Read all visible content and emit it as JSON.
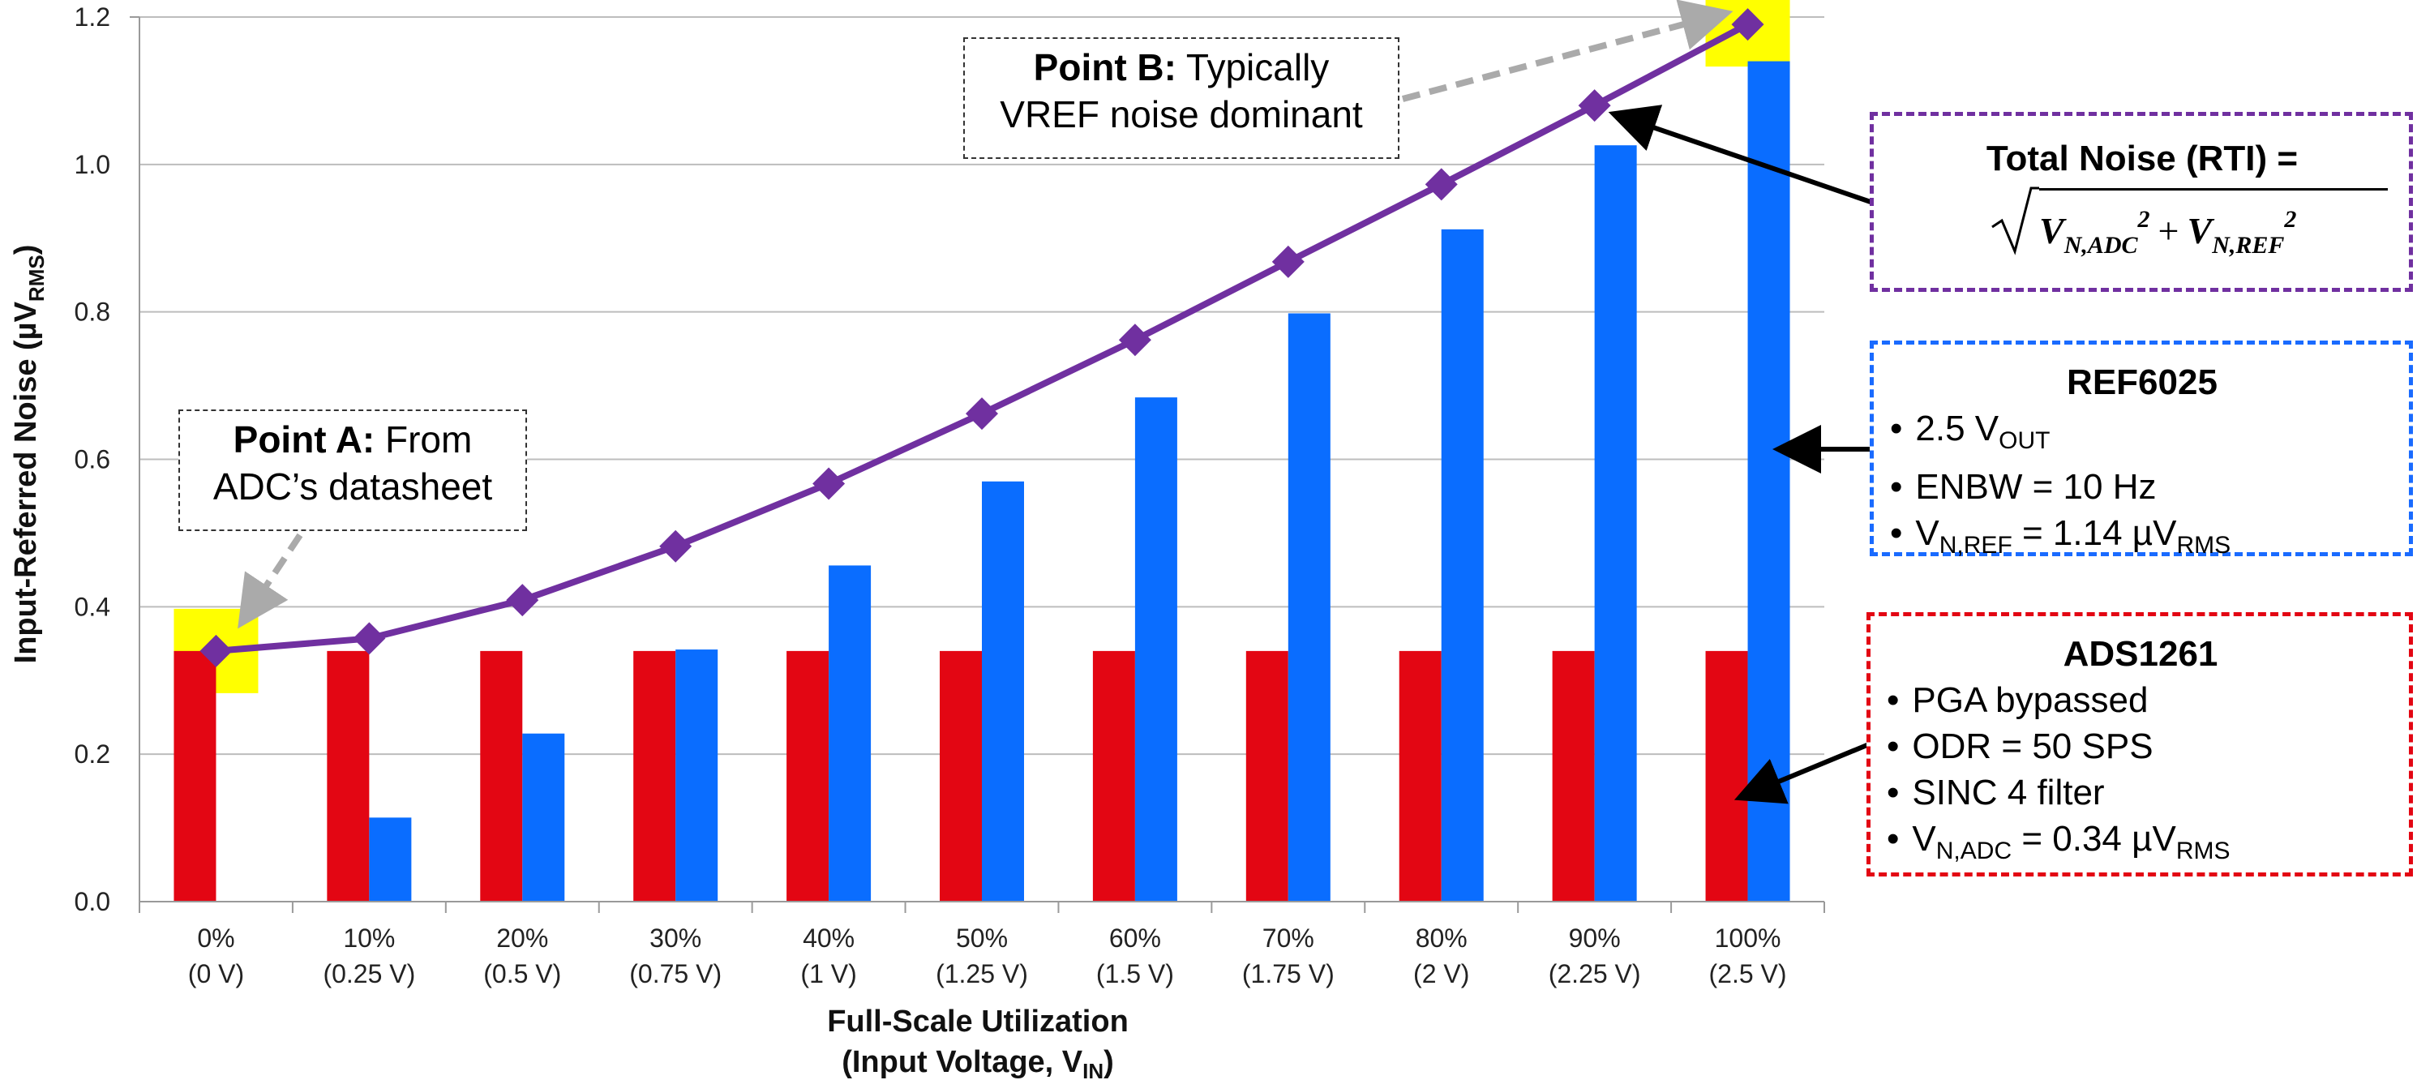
{
  "chart_data": {
    "type": "bar",
    "categories": [
      [
        "0%",
        "(0 V)"
      ],
      [
        "10%",
        "(0.25 V)"
      ],
      [
        "20%",
        "(0.5 V)"
      ],
      [
        "30%",
        "(0.75 V)"
      ],
      [
        "40%",
        "(1 V)"
      ],
      [
        "50%",
        "(1.25 V)"
      ],
      [
        "60%",
        "(1.5 V)"
      ],
      [
        "70%",
        "(1.75 V)"
      ],
      [
        "80%",
        "(2 V)"
      ],
      [
        "90%",
        "(2.25 V)"
      ],
      [
        "100%",
        "(2.5 V)"
      ]
    ],
    "series": [
      {
        "kind": "bar",
        "color": "#e30613",
        "values": [
          0.34,
          0.34,
          0.34,
          0.34,
          0.34,
          0.34,
          0.34,
          0.34,
          0.34,
          0.34,
          0.34
        ]
      },
      {
        "kind": "bar",
        "color": "#0a6dff",
        "values": [
          0,
          0.114,
          0.228,
          0.342,
          0.456,
          0.57,
          0.684,
          0.798,
          0.912,
          1.026,
          1.14
        ]
      },
      {
        "kind": "line",
        "color": "#7030a0",
        "marker": "diamond",
        "values": [
          0.34,
          0.357,
          0.409,
          0.482,
          0.567,
          0.662,
          0.762,
          0.868,
          0.973,
          1.08,
          1.19
        ]
      }
    ],
    "ylim": [
      0,
      1.2
    ],
    "yticks": [
      "0.0",
      "0.2",
      "0.4",
      "0.6",
      "0.8",
      "1.0",
      "1.2"
    ],
    "ylabel": {
      "text": "Input-Referred Noise (µV",
      "sub": "RMS",
      "tail": ")"
    },
    "xlabel": {
      "line1": "Full-Scale Utilization",
      "line2": "(Input Voltage, V",
      "sub": "IN",
      "tail": ")"
    },
    "highlights": [
      {
        "category_index": 0,
        "y": 0.34,
        "color": "#ffff00"
      },
      {
        "category_index": 10,
        "y": 1.19,
        "color": "#ffff00"
      }
    ],
    "grid": true,
    "legend": "none"
  },
  "annotations": {
    "point_a": {
      "bold": "Point A:",
      "rest": " From",
      "line2": "ADC’s datasheet"
    },
    "point_b": {
      "bold": "Point B:",
      "rest": " Typically",
      "line2": "VREF noise dominant"
    }
  },
  "total_noise_box": {
    "title": "Total Noise (RTI) =",
    "term1_base": "V",
    "term1_sub": "N,ADC",
    "term1_sup": "2",
    "plus": "+",
    "term2_base": "V",
    "term2_sub": "N,REF",
    "term2_sup": "2",
    "border_color": "#7030a0"
  },
  "ref_box": {
    "title": "REF6025",
    "item1_main": "2.5 V",
    "item1_sub": "OUT",
    "item2": "ENBW = 10 Hz",
    "item3_main": "V",
    "item3_sub": "N,REF",
    "item3_tail": " = 1.14 µV",
    "item3_sub2": "RMS",
    "border_color": "#1a6bff"
  },
  "adc_box": {
    "title": "ADS1261",
    "item1": "PGA bypassed",
    "item2": "ODR = 50 SPS",
    "item3": "SINC 4 filter",
    "item4_main": "V",
    "item4_sub": "N,ADC",
    "item4_tail": " = 0.34 µV",
    "item4_sub2": "RMS",
    "border_color": "#e30613"
  }
}
